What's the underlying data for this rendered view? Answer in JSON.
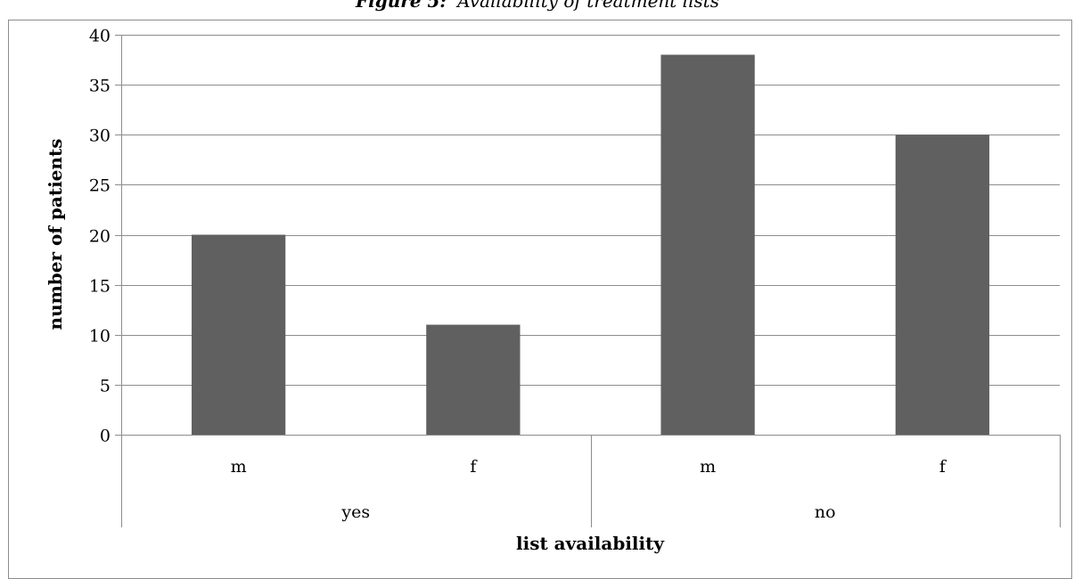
{
  "figure": {
    "label": "Figure 5:",
    "caption": "Availability of treatment lists"
  },
  "chart_data": {
    "type": "bar",
    "groups": [
      "yes",
      "no"
    ],
    "categories": [
      "m",
      "f",
      "m",
      "f"
    ],
    "category_groups": [
      "yes",
      "yes",
      "no",
      "no"
    ],
    "values": [
      20,
      11,
      38,
      30
    ],
    "xlabel": "list availability",
    "ylabel": "number of patients",
    "ylim": [
      0,
      40
    ],
    "yticks": [
      0,
      5,
      10,
      15,
      20,
      25,
      30,
      35,
      40
    ],
    "grid": true,
    "legend": "none"
  },
  "colors": {
    "bar": "#606060",
    "grid": "#8c8c8c",
    "frame": "#8c8c8c"
  }
}
